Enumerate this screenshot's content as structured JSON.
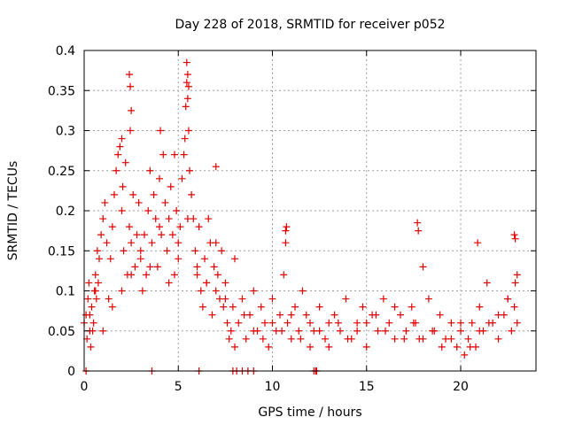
{
  "chart_data": {
    "type": "scatter",
    "title": "Day 228 of 2018, SRMTID for receiver p052",
    "xlabel": "GPS time / hours",
    "ylabel": "SRMTID / TECUs",
    "xlim": [
      0,
      24
    ],
    "ylim": [
      0,
      0.4
    ],
    "xticks": [
      0,
      5,
      10,
      15,
      20
    ],
    "xtick_labels": [
      "0",
      "5",
      "10",
      "15",
      "20"
    ],
    "yticks": [
      0,
      0.05,
      0.1,
      0.15,
      0.2,
      0.25,
      0.3,
      0.35,
      0.4
    ],
    "ytick_labels": [
      "0",
      "0.05",
      "0.1",
      "0.15",
      "0.2",
      "0.25",
      "0.3",
      "0.35",
      "0.4"
    ],
    "grid": true,
    "marker": "plus",
    "color": "#e00000",
    "series": [
      {
        "name": "SRMTID",
        "x": [
          0.0,
          0.1,
          0.15,
          0.2,
          0.25,
          0.3,
          0.35,
          0.4,
          0.45,
          0.5,
          0.55,
          0.6,
          0.65,
          0.7,
          0.75,
          0.8,
          0.9,
          1.0,
          1.1,
          1.2,
          1.3,
          1.4,
          1.5,
          1.6,
          1.7,
          1.8,
          1.9,
          2.0,
          2.05,
          2.1,
          2.2,
          2.3,
          2.4,
          2.45,
          2.5,
          2.6,
          2.7,
          2.8,
          2.9,
          3.0,
          3.1,
          3.2,
          3.3,
          3.4,
          3.5,
          3.6,
          3.7,
          3.8,
          3.9,
          4.0,
          4.1,
          4.2,
          4.3,
          4.4,
          4.5,
          4.6,
          4.7,
          4.8,
          4.9,
          5.0,
          5.1,
          5.2,
          5.3,
          5.35,
          5.4,
          5.45,
          5.5,
          5.55,
          5.6,
          5.7,
          5.8,
          5.9,
          6.0,
          6.1,
          6.2,
          6.3,
          6.4,
          6.5,
          6.6,
          6.7,
          6.8,
          6.9,
          7.0,
          7.1,
          7.2,
          7.3,
          7.4,
          7.5,
          7.6,
          7.7,
          7.8,
          7.9,
          8.0,
          8.2,
          8.4,
          8.6,
          8.8,
          9.0,
          9.2,
          9.4,
          9.6,
          9.8,
          10.0,
          10.2,
          10.4,
          10.6,
          10.7,
          10.8,
          11.0,
          11.2,
          11.4,
          11.6,
          11.8,
          12.0,
          12.2,
          12.5,
          12.8,
          13.0,
          13.3,
          13.6,
          13.9,
          14.2,
          14.5,
          14.8,
          15.0,
          15.3,
          15.6,
          15.9,
          16.2,
          16.5,
          16.8,
          17.1,
          17.4,
          17.6,
          17.8,
          18.0,
          18.3,
          18.6,
          18.9,
          19.2,
          19.5,
          19.8,
          20.0,
          20.2,
          20.4,
          20.6,
          20.8,
          21.0,
          21.2,
          21.4,
          21.7,
          22.0,
          22.3,
          22.5,
          22.7,
          22.85,
          22.9,
          23.0,
          0.3,
          0.6,
          1.0,
          1.5,
          2.0,
          2.5,
          3.0,
          3.5,
          4.0,
          4.5,
          5.0,
          5.5,
          6.0,
          6.5,
          7.0,
          7.5,
          8.0,
          8.5,
          9.0,
          9.5,
          10.0,
          10.5,
          11.0,
          11.5,
          12.0,
          12.5,
          13.0,
          13.5,
          14.0,
          14.5,
          15.0,
          15.5,
          16.0,
          16.5,
          17.0,
          17.5,
          18.0,
          18.5,
          19.0,
          19.5,
          20.0,
          20.5,
          21.0,
          21.5,
          22.0,
          22.5,
          23.0,
          2.4,
          2.45,
          5.45,
          5.5,
          5.55,
          4.05,
          2.0,
          10.7,
          10.75,
          17.7,
          17.75,
          20.9,
          22.85,
          22.9,
          2.5,
          4.8,
          7.0,
          0.1,
          3.6,
          6.1,
          7.9,
          8.1,
          8.4,
          8.7,
          9.0,
          12.2,
          12.3,
          12.35
        ],
        "y": [
          0.06,
          0.07,
          0.04,
          0.09,
          0.11,
          0.05,
          0.03,
          0.08,
          0.05,
          0.06,
          0.1,
          0.12,
          0.09,
          0.15,
          0.11,
          0.14,
          0.17,
          0.19,
          0.21,
          0.16,
          0.09,
          0.14,
          0.18,
          0.22,
          0.25,
          0.27,
          0.28,
          0.2,
          0.23,
          0.15,
          0.26,
          0.12,
          0.18,
          0.3,
          0.16,
          0.22,
          0.13,
          0.17,
          0.21,
          0.14,
          0.1,
          0.17,
          0.12,
          0.2,
          0.25,
          0.16,
          0.22,
          0.19,
          0.13,
          0.24,
          0.17,
          0.27,
          0.21,
          0.15,
          0.19,
          0.23,
          0.17,
          0.12,
          0.2,
          0.14,
          0.18,
          0.24,
          0.27,
          0.29,
          0.33,
          0.36,
          0.34,
          0.3,
          0.25,
          0.22,
          0.19,
          0.15,
          0.12,
          0.18,
          0.1,
          0.08,
          0.14,
          0.11,
          0.19,
          0.16,
          0.07,
          0.13,
          0.1,
          0.12,
          0.09,
          0.15,
          0.08,
          0.11,
          0.06,
          0.04,
          0.05,
          0.08,
          0.03,
          0.06,
          0.09,
          0.04,
          0.07,
          0.1,
          0.05,
          0.08,
          0.06,
          0.03,
          0.09,
          0.05,
          0.07,
          0.12,
          0.16,
          0.06,
          0.04,
          0.08,
          0.05,
          0.1,
          0.07,
          0.03,
          0.05,
          0.08,
          0.04,
          0.06,
          0.07,
          0.05,
          0.09,
          0.04,
          0.06,
          0.08,
          0.03,
          0.07,
          0.05,
          0.09,
          0.06,
          0.04,
          0.07,
          0.05,
          0.08,
          0.06,
          0.04,
          0.13,
          0.09,
          0.05,
          0.07,
          0.04,
          0.06,
          0.03,
          0.05,
          0.02,
          0.04,
          0.06,
          0.03,
          0.08,
          0.05,
          0.11,
          0.06,
          0.04,
          0.07,
          0.09,
          0.05,
          0.08,
          0.11,
          0.12,
          0.07,
          0.1,
          0.05,
          0.08,
          0.1,
          0.12,
          0.15,
          0.13,
          0.18,
          0.11,
          0.16,
          0.19,
          0.13,
          0.11,
          0.16,
          0.09,
          0.14,
          0.07,
          0.05,
          0.04,
          0.06,
          0.05,
          0.07,
          0.04,
          0.06,
          0.05,
          0.03,
          0.06,
          0.04,
          0.05,
          0.06,
          0.07,
          0.05,
          0.08,
          0.04,
          0.06,
          0.04,
          0.05,
          0.03,
          0.04,
          0.06,
          0.03,
          0.05,
          0.06,
          0.07,
          0.09,
          0.06,
          0.37,
          0.355,
          0.385,
          0.37,
          0.355,
          0.3,
          0.29,
          0.175,
          0.18,
          0.185,
          0.175,
          0.16,
          0.17,
          0.165,
          0.325,
          0.27,
          0.255,
          0.0,
          0.0,
          0.0,
          0.0,
          0.0,
          0.0,
          0.0,
          0.0,
          0.0,
          0.0,
          0.0
        ]
      }
    ]
  }
}
